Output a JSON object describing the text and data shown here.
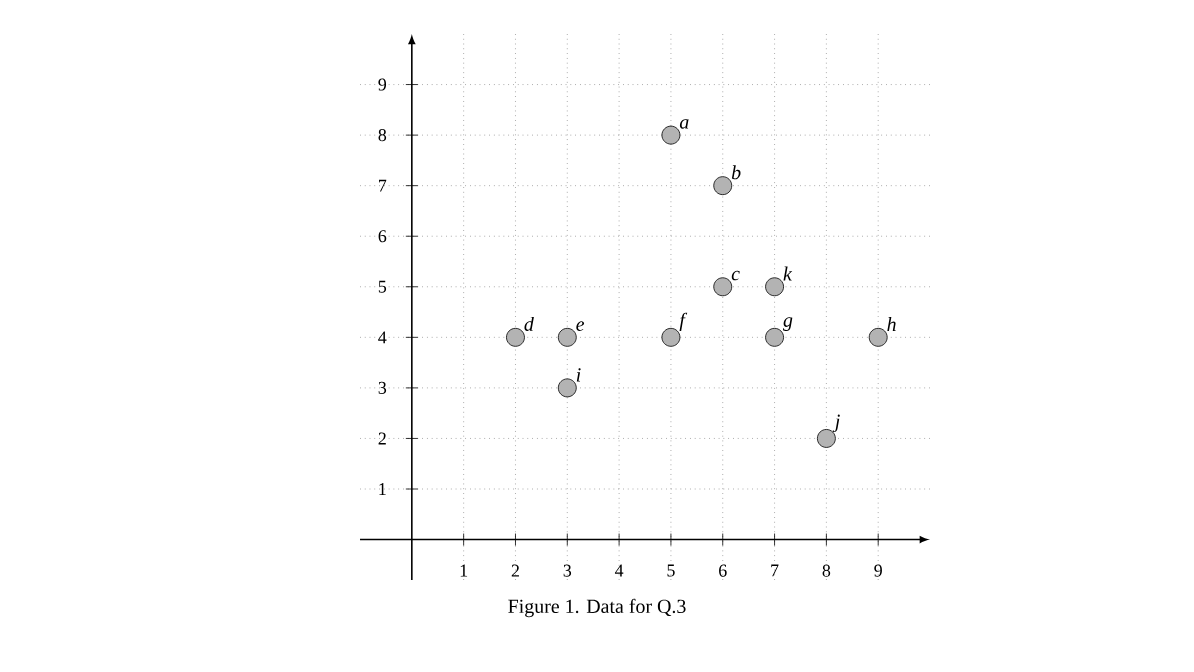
{
  "chart_data": {
    "type": "scatter",
    "x": [
      5,
      6,
      6,
      2,
      3,
      5,
      7,
      9,
      3,
      8,
      7
    ],
    "values": [
      8,
      7,
      5,
      4,
      4,
      4,
      4,
      4,
      3,
      2,
      5
    ],
    "color": "#b3b3b3",
    "marker": "circle",
    "grid": true,
    "xlim": [
      -1,
      10
    ],
    "ylim": [
      -0.8,
      10
    ],
    "xticks": [
      1,
      2,
      3,
      4,
      5,
      6,
      7,
      8,
      9
    ],
    "yticks": [
      1,
      2,
      3,
      4,
      5,
      6,
      7,
      8,
      9
    ],
    "annotations": [
      {
        "text": "a",
        "x": 5,
        "y": 8
      },
      {
        "text": "b",
        "x": 6,
        "y": 7
      },
      {
        "text": "c",
        "x": 6,
        "y": 5
      },
      {
        "text": "d",
        "x": 2,
        "y": 4
      },
      {
        "text": "e",
        "x": 3,
        "y": 4
      },
      {
        "text": "f",
        "x": 5,
        "y": 4
      },
      {
        "text": "g",
        "x": 7,
        "y": 4
      },
      {
        "text": "h",
        "x": 9,
        "y": 4
      },
      {
        "text": "i",
        "x": 3,
        "y": 3
      },
      {
        "text": "j",
        "x": 8,
        "y": 2
      },
      {
        "text": "k",
        "x": 7,
        "y": 5
      },
      "Figure 1. Data for Q.3"
    ]
  }
}
